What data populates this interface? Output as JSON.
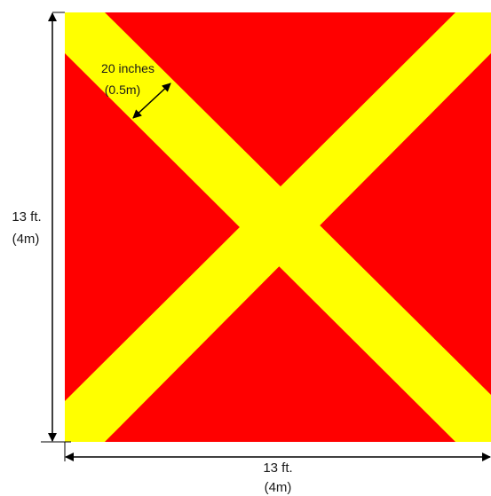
{
  "colors": {
    "background_square": "#ff0000",
    "cross_band": "#ffff00",
    "dimension_lines": "#000000",
    "page_background": "#ffffff"
  },
  "labels": {
    "band_width_line1": "20 inches",
    "band_width_line2": "(0.5m)",
    "height_line1": "13 ft.",
    "height_line2": "(4m)",
    "width_line1": "13 ft.",
    "width_line2": "(4m)"
  }
}
